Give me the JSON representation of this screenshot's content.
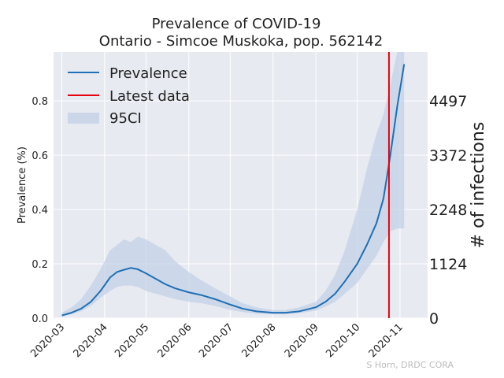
{
  "chart_data": {
    "type": "line",
    "title": "Prevalence of COVID-19",
    "subtitle": "Ontario - Simcoe Muskoka, pop. 562142",
    "ylabel": "Prevalence (%)",
    "ylabel_right": "# of infections",
    "ylim": [
      0,
      0.98
    ],
    "xlim": [
      "2020-02-24",
      "2020-11-21"
    ],
    "x_ticks": [
      "2020-03",
      "2020-04",
      "2020-05",
      "2020-06",
      "2020-07",
      "2020-08",
      "2020-09",
      "2020-10",
      "2020-11"
    ],
    "y_ticks": [
      "0.0",
      "0.2",
      "0.4",
      "0.6",
      "0.8"
    ],
    "y_tick_values": [
      0.0,
      0.2,
      0.4,
      0.6,
      0.8
    ],
    "right_ticks": [
      "0",
      "1124",
      "2248",
      "3372",
      "4497"
    ],
    "right_tick_values": [
      0,
      0.2,
      0.4,
      0.6,
      0.8
    ],
    "grid": true,
    "legend_position": "top-left",
    "legend": [
      "Prevalence",
      "Latest data",
      "95CI"
    ],
    "colors": {
      "prevalence": "#1f6fb4",
      "latest": "#e8000b",
      "ci": "#c3d2e6",
      "background": "#e8eaf2",
      "grid": "#ffffff"
    },
    "latest_data_date": "2020-10-24",
    "series": [
      {
        "name": "Prevalence",
        "x": [
          "2020-03-01",
          "2020-03-08",
          "2020-03-15",
          "2020-03-22",
          "2020-03-29",
          "2020-04-05",
          "2020-04-10",
          "2020-04-15",
          "2020-04-20",
          "2020-04-25",
          "2020-05-01",
          "2020-05-08",
          "2020-05-15",
          "2020-05-22",
          "2020-06-01",
          "2020-06-10",
          "2020-06-20",
          "2020-07-01",
          "2020-07-10",
          "2020-07-20",
          "2020-08-01",
          "2020-08-10",
          "2020-08-20",
          "2020-09-01",
          "2020-09-08",
          "2020-09-15",
          "2020-09-22",
          "2020-10-01",
          "2020-10-08",
          "2020-10-15",
          "2020-10-20",
          "2020-10-25",
          "2020-10-30",
          "2020-11-04"
        ],
        "values": [
          0.01,
          0.02,
          0.035,
          0.06,
          0.1,
          0.15,
          0.17,
          0.178,
          0.185,
          0.18,
          0.165,
          0.145,
          0.125,
          0.11,
          0.095,
          0.085,
          0.07,
          0.05,
          0.035,
          0.025,
          0.02,
          0.02,
          0.025,
          0.04,
          0.06,
          0.09,
          0.135,
          0.2,
          0.27,
          0.35,
          0.44,
          0.6,
          0.78,
          0.935
        ]
      },
      {
        "name": "95CI",
        "x": [
          "2020-03-01",
          "2020-03-08",
          "2020-03-15",
          "2020-03-22",
          "2020-03-29",
          "2020-04-05",
          "2020-04-10",
          "2020-04-15",
          "2020-04-20",
          "2020-04-25",
          "2020-05-01",
          "2020-05-08",
          "2020-05-15",
          "2020-05-22",
          "2020-06-01",
          "2020-06-10",
          "2020-06-20",
          "2020-07-01",
          "2020-07-10",
          "2020-07-20",
          "2020-08-01",
          "2020-08-10",
          "2020-08-20",
          "2020-09-01",
          "2020-09-08",
          "2020-09-15",
          "2020-09-22",
          "2020-10-01",
          "2020-10-08",
          "2020-10-15",
          "2020-10-20",
          "2020-10-25",
          "2020-10-30",
          "2020-11-04"
        ],
        "upper": [
          0.02,
          0.04,
          0.07,
          0.12,
          0.18,
          0.25,
          0.27,
          0.29,
          0.28,
          0.3,
          0.29,
          0.27,
          0.25,
          0.21,
          0.17,
          0.14,
          0.11,
          0.08,
          0.055,
          0.04,
          0.03,
          0.03,
          0.04,
          0.06,
          0.1,
          0.16,
          0.25,
          0.4,
          0.55,
          0.68,
          0.75,
          0.86,
          0.98,
          0.98
        ],
        "lower": [
          0.005,
          0.015,
          0.025,
          0.045,
          0.075,
          0.1,
          0.115,
          0.12,
          0.12,
          0.115,
          0.1,
          0.09,
          0.08,
          0.07,
          0.06,
          0.055,
          0.045,
          0.03,
          0.022,
          0.016,
          0.014,
          0.014,
          0.018,
          0.028,
          0.042,
          0.06,
          0.09,
          0.13,
          0.18,
          0.23,
          0.28,
          0.32,
          0.33,
          0.33
        ]
      }
    ],
    "credit": "S Horn, DRDC CORA"
  }
}
